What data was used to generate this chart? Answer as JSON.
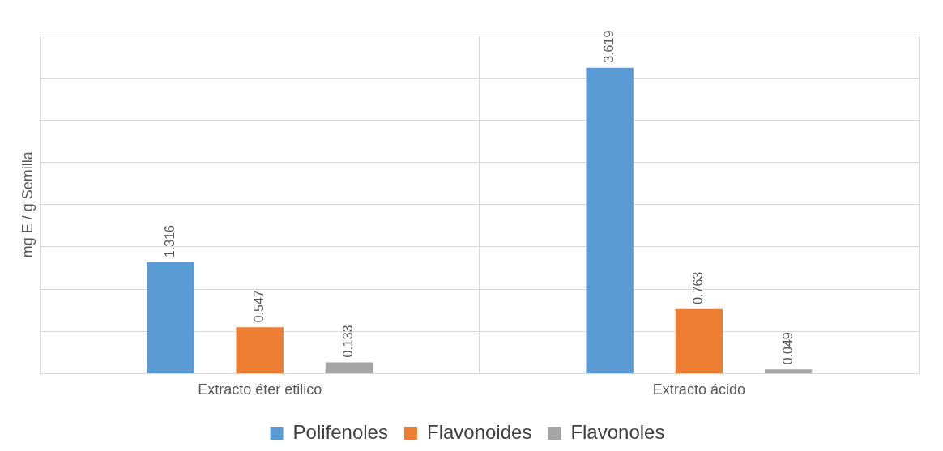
{
  "chart_data": {
    "type": "bar",
    "ylabel": "mg E / g Semilla",
    "categories": [
      "Extracto éter etilico",
      "Extracto ácido"
    ],
    "series": [
      {
        "name": "Polifenoles",
        "color": "#5b9bd5",
        "values": [
          1.316,
          3.619
        ]
      },
      {
        "name": "Flavonoides",
        "color": "#ed7d31",
        "values": [
          0.547,
          0.763
        ]
      },
      {
        "name": "Flavonoles",
        "color": "#a5a5a5",
        "values": [
          0.133,
          0.049
        ]
      }
    ],
    "ylim": [
      0,
      4
    ],
    "yticks": [
      {
        "value": 0,
        "label": null
      },
      {
        "value": 0.5,
        "label": null
      },
      {
        "value": 1,
        "label": null
      },
      {
        "value": 1.5,
        "label": null
      },
      {
        "value": 2,
        "label": null
      },
      {
        "value": 2.5,
        "label": null
      },
      {
        "value": 3,
        "label": null
      },
      {
        "value": 3.5,
        "label": null
      },
      {
        "value": 4,
        "label": null
      }
    ],
    "tick_labels": "x",
    "grid": true,
    "legend": "bottom",
    "data_labels": true
  }
}
